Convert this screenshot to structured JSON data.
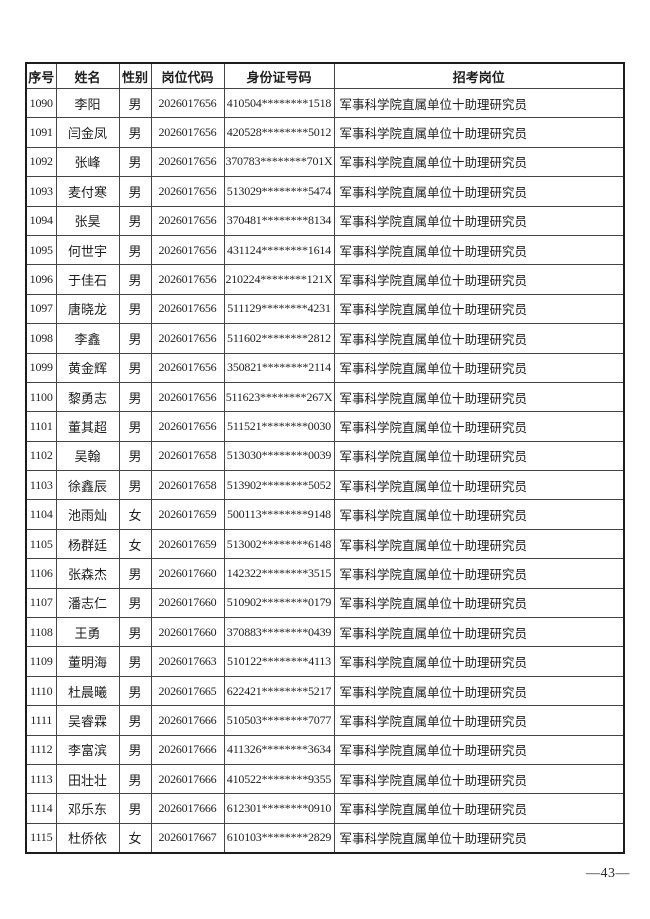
{
  "page": {
    "page_number": "—43—"
  },
  "table": {
    "headers": [
      "序号",
      "姓名",
      "性别",
      "岗位代码",
      "身份证号码",
      "招考岗位"
    ],
    "rows": [
      [
        "1090",
        "李阳",
        "男",
        "2026017656",
        "410504********1518",
        "军事科学院直属单位十助理研究员"
      ],
      [
        "1091",
        "闫金凤",
        "男",
        "2026017656",
        "420528********5012",
        "军事科学院直属单位十助理研究员"
      ],
      [
        "1092",
        "张峰",
        "男",
        "2026017656",
        "370783********701X",
        "军事科学院直属单位十助理研究员"
      ],
      [
        "1093",
        "麦付寒",
        "男",
        "2026017656",
        "513029********5474",
        "军事科学院直属单位十助理研究员"
      ],
      [
        "1094",
        "张昊",
        "男",
        "2026017656",
        "370481********8134",
        "军事科学院直属单位十助理研究员"
      ],
      [
        "1095",
        "何世宇",
        "男",
        "2026017656",
        "431124********1614",
        "军事科学院直属单位十助理研究员"
      ],
      [
        "1096",
        "于佳石",
        "男",
        "2026017656",
        "210224********121X",
        "军事科学院直属单位十助理研究员"
      ],
      [
        "1097",
        "唐晓龙",
        "男",
        "2026017656",
        "511129********4231",
        "军事科学院直属单位十助理研究员"
      ],
      [
        "1098",
        "李鑫",
        "男",
        "2026017656",
        "511602********2812",
        "军事科学院直属单位十助理研究员"
      ],
      [
        "1099",
        "黄金辉",
        "男",
        "2026017656",
        "350821********2114",
        "军事科学院直属单位十助理研究员"
      ],
      [
        "1100",
        "黎勇志",
        "男",
        "2026017656",
        "511623********267X",
        "军事科学院直属单位十助理研究员"
      ],
      [
        "1101",
        "董其超",
        "男",
        "2026017656",
        "511521********0030",
        "军事科学院直属单位十助理研究员"
      ],
      [
        "1102",
        "吴翰",
        "男",
        "2026017658",
        "513030********0039",
        "军事科学院直属单位十助理研究员"
      ],
      [
        "1103",
        "徐鑫辰",
        "男",
        "2026017658",
        "513902********5052",
        "军事科学院直属单位十助理研究员"
      ],
      [
        "1104",
        "池雨灿",
        "女",
        "2026017659",
        "500113********9148",
        "军事科学院直属单位十助理研究员"
      ],
      [
        "1105",
        "杨群廷",
        "女",
        "2026017659",
        "513002********6148",
        "军事科学院直属单位十助理研究员"
      ],
      [
        "1106",
        "张森杰",
        "男",
        "2026017660",
        "142322********3515",
        "军事科学院直属单位十助理研究员"
      ],
      [
        "1107",
        "潘志仁",
        "男",
        "2026017660",
        "510902********0179",
        "军事科学院直属单位十助理研究员"
      ],
      [
        "1108",
        "王勇",
        "男",
        "2026017660",
        "370883********0439",
        "军事科学院直属单位十助理研究员"
      ],
      [
        "1109",
        "董明海",
        "男",
        "2026017663",
        "510122********4113",
        "军事科学院直属单位十助理研究员"
      ],
      [
        "1110",
        "杜晨曦",
        "男",
        "2026017665",
        "622421********5217",
        "军事科学院直属单位十助理研究员"
      ],
      [
        "1111",
        "吴睿霖",
        "男",
        "2026017666",
        "510503********7077",
        "军事科学院直属单位十助理研究员"
      ],
      [
        "1112",
        "李富滨",
        "男",
        "2026017666",
        "411326********3634",
        "军事科学院直属单位十助理研究员"
      ],
      [
        "1113",
        "田壮壮",
        "男",
        "2026017666",
        "410522********9355",
        "军事科学院直属单位十助理研究员"
      ],
      [
        "1114",
        "邓乐东",
        "男",
        "2026017666",
        "612301********0910",
        "军事科学院直属单位十助理研究员"
      ],
      [
        "1115",
        "杜侨依",
        "女",
        "2026017667",
        "610103********2829",
        "军事科学院直属单位十助理研究员"
      ]
    ]
  }
}
